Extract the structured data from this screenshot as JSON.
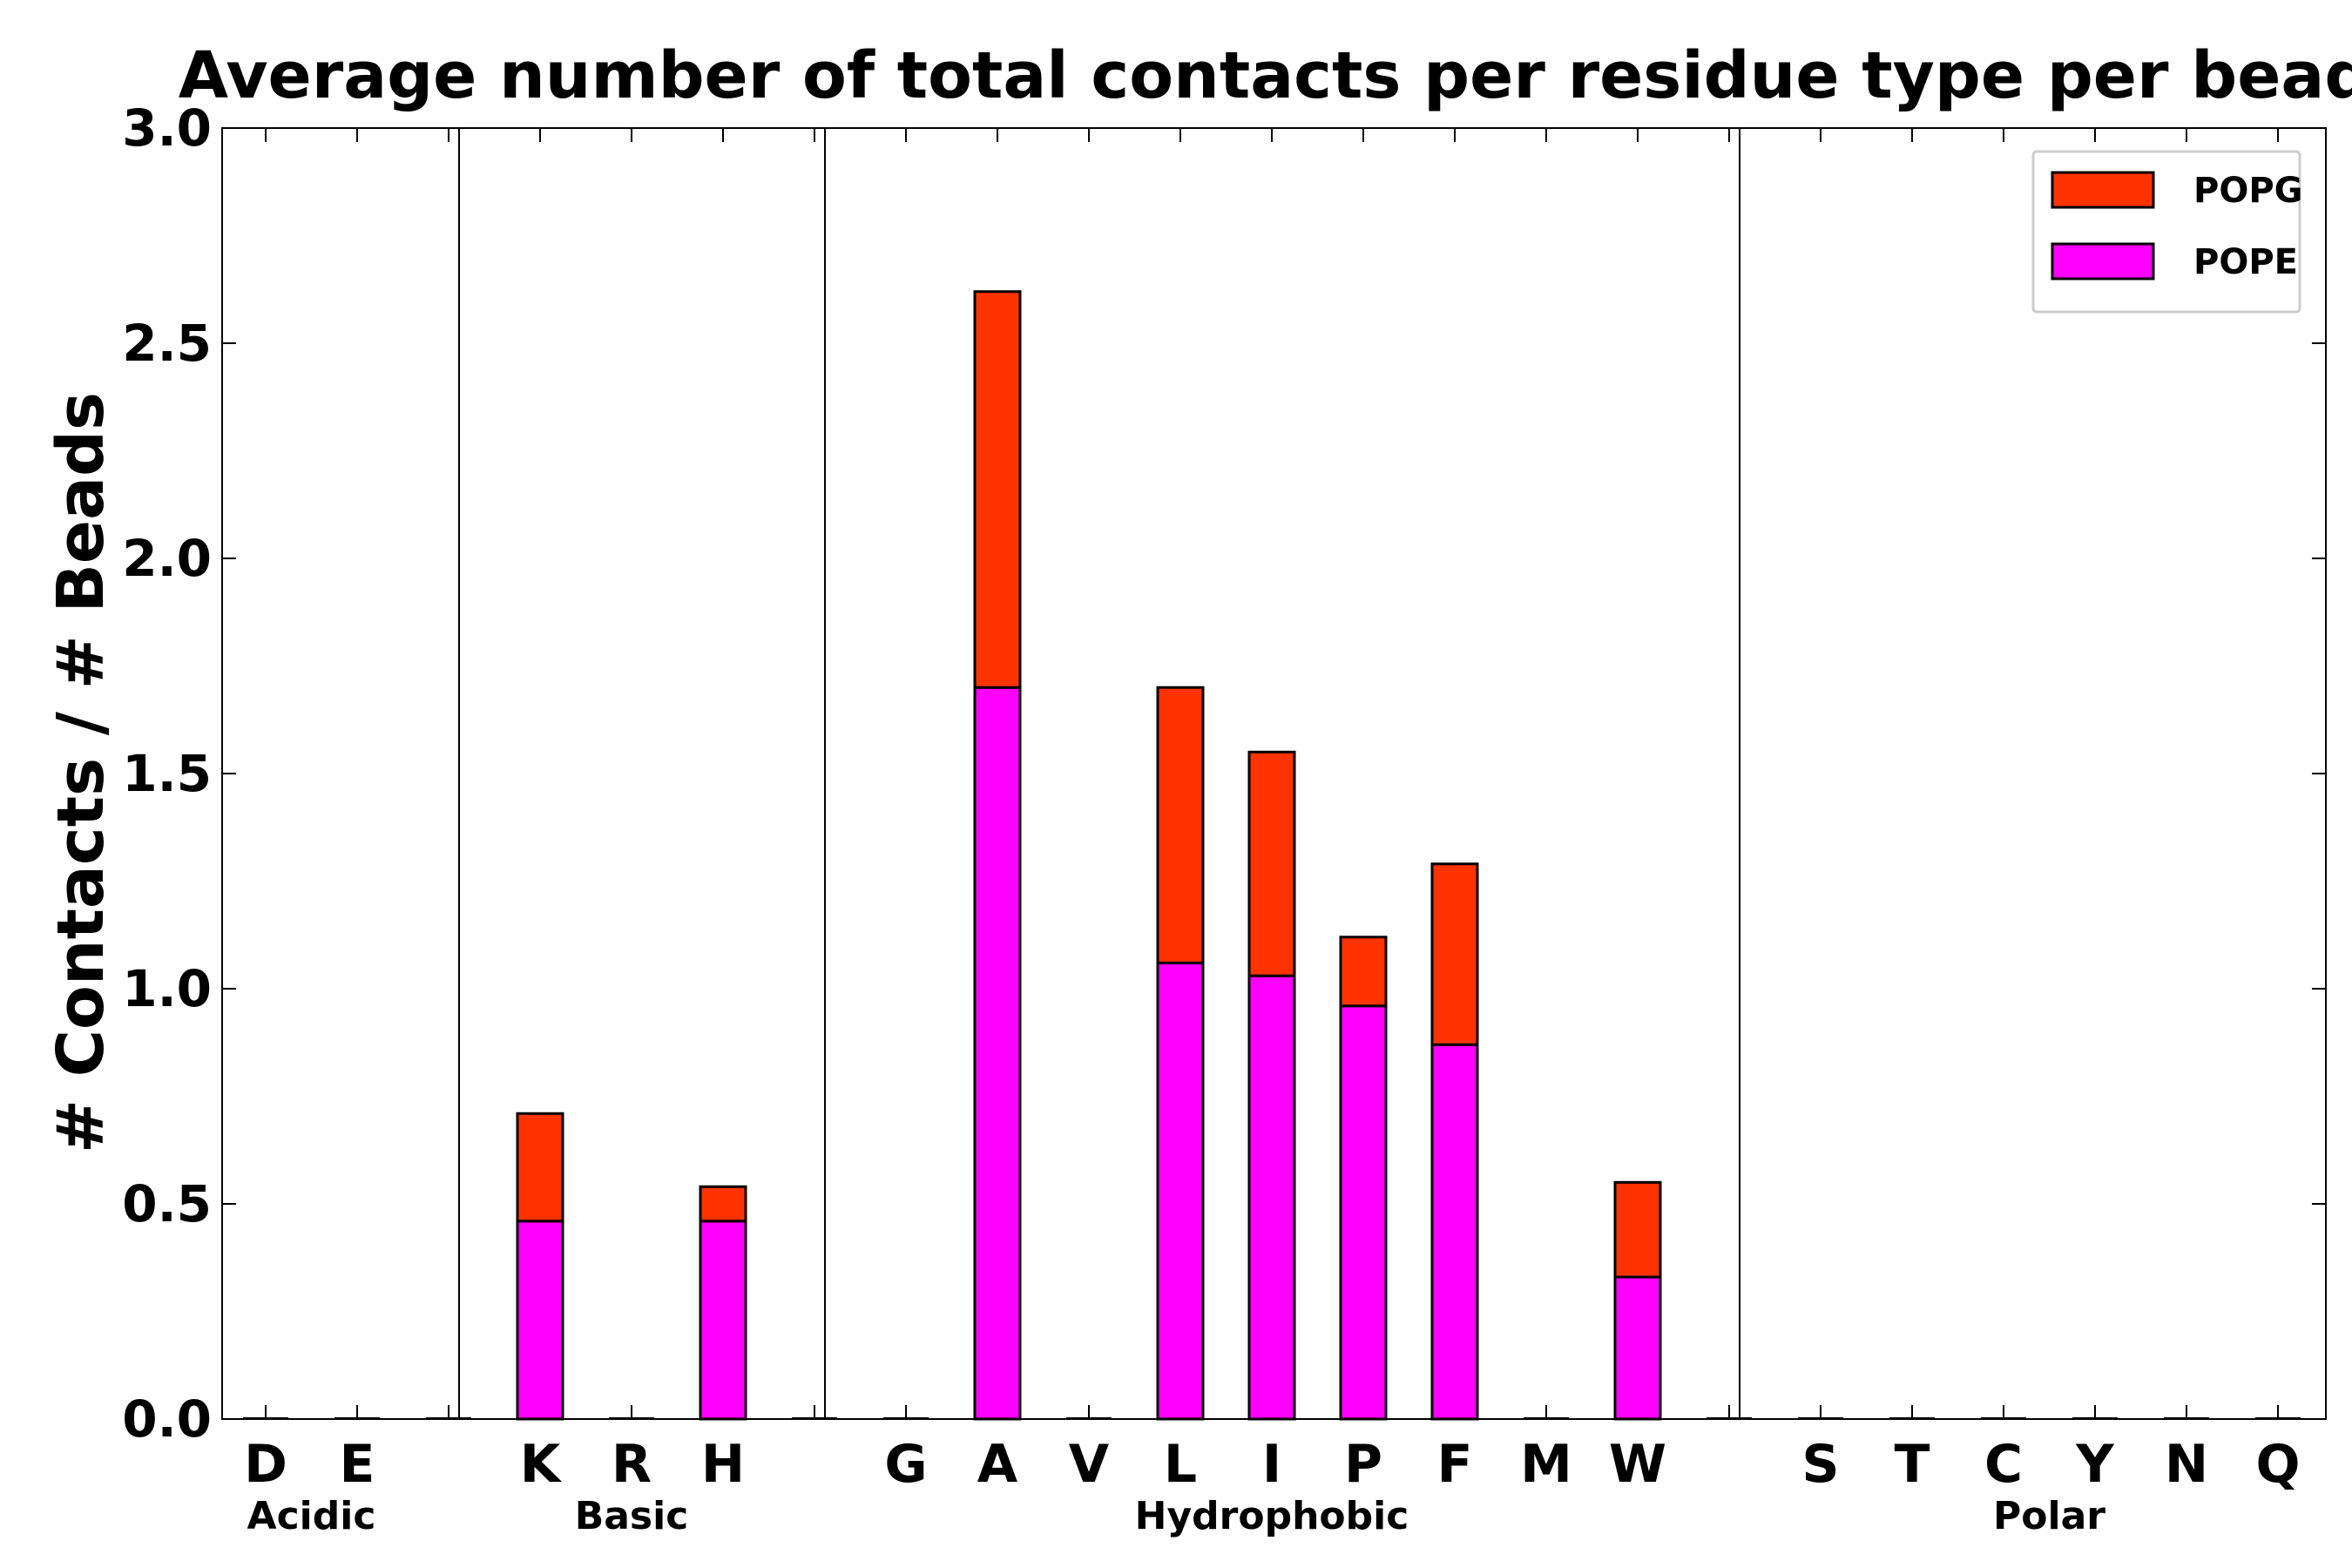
{
  "chart_data": {
    "type": "bar",
    "stacked": true,
    "title": "Average number of total contacts per residue type per bead",
    "xlabel": "",
    "ylabel": "# Contacts / # Beads",
    "ylim": [
      0,
      3.0
    ],
    "yticks": [
      0.0,
      0.5,
      1.0,
      1.5,
      2.0,
      2.5,
      3.0
    ],
    "ytick_labels": [
      "0.0",
      "0.5",
      "1.0",
      "1.5",
      "2.0",
      "2.5",
      "3.0"
    ],
    "colors": {
      "POPE": "#ff00ff",
      "POPG": "#ff3300"
    },
    "legend_position": "top-right",
    "groups": [
      {
        "name": "Acidic",
        "categories": [
          "D",
          "E"
        ]
      },
      {
        "name": "Basic",
        "categories": [
          "K",
          "R",
          "H"
        ]
      },
      {
        "name": "Hydrophobic",
        "categories": [
          "G",
          "A",
          "V",
          "L",
          "I",
          "P",
          "F",
          "M",
          "W"
        ]
      },
      {
        "name": "Polar",
        "categories": [
          "S",
          "T",
          "C",
          "Y",
          "N",
          "Q"
        ]
      }
    ],
    "series": [
      {
        "name": "POPE",
        "values": [
          0,
          0,
          0.46,
          0,
          0.46,
          0,
          1.7,
          0,
          1.06,
          1.03,
          0.96,
          0.87,
          0,
          0.33,
          0,
          0,
          0,
          0,
          0,
          0
        ]
      },
      {
        "name": "POPG",
        "values": [
          0,
          0,
          0.25,
          0,
          0.08,
          0,
          0.92,
          0,
          0.64,
          0.52,
          0.16,
          0.42,
          0,
          0.22,
          0,
          0,
          0,
          0,
          0,
          0
        ]
      }
    ],
    "legend": [
      "POPG",
      "POPE"
    ]
  }
}
